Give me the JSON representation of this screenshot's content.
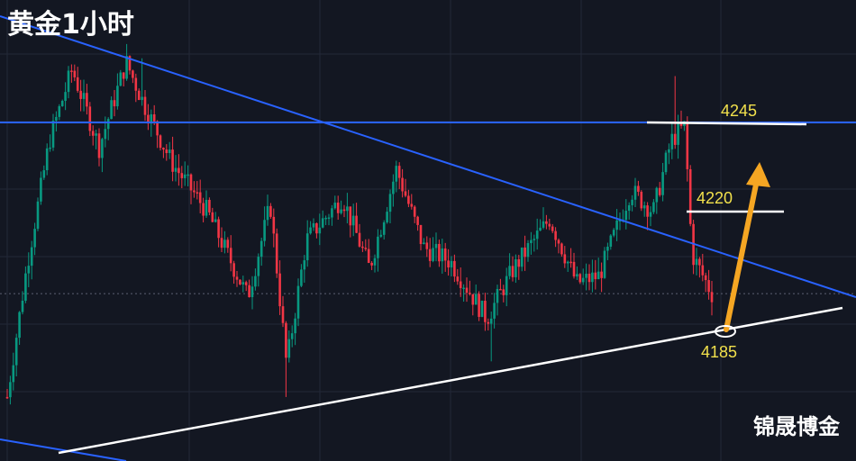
{
  "chart_title": "黄金1小时",
  "watermark": "锦晟博金",
  "chart_data": {
    "type": "candlestick",
    "title": "黄金1小时",
    "xlabel": "",
    "ylabel": "",
    "ylim": [
      4158,
      4277
    ],
    "grid": true,
    "colors": {
      "background": "#131722",
      "up": "#089981",
      "down": "#F23645",
      "grid": "#232838",
      "trendline_resistance": "#2962FF",
      "trendline_support": "#FFFFFF",
      "horizontal_level": "#2962FF",
      "arrow": "#F5A623",
      "level_label": "#F2E14C"
    },
    "levels": [
      {
        "label": "4245",
        "price": 4245
      },
      {
        "label": "4220",
        "price": 4220
      },
      {
        "label": "4185",
        "price": 4185
      }
    ],
    "dotted_price_line": 4197
  }
}
